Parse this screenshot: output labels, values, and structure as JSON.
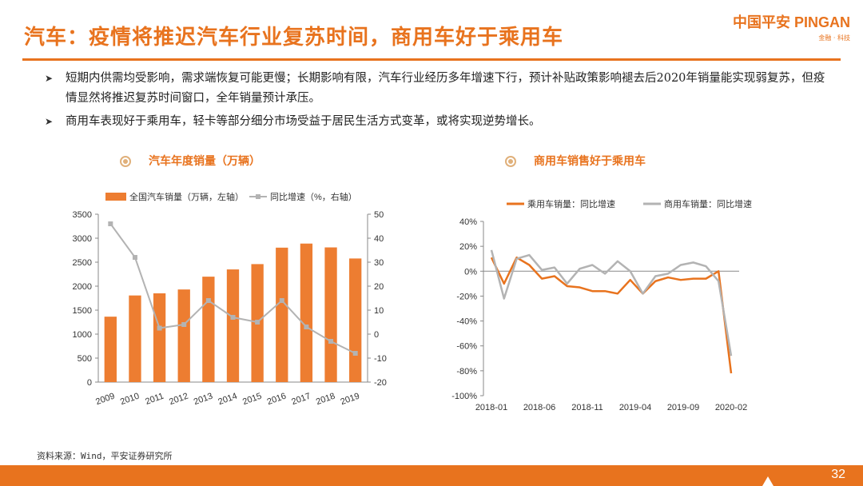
{
  "header": {
    "title": "汽车：疫情将推迟汽车行业复苏时间，商用车好于乘用车",
    "logo_brand": "中国平安 PINGAN",
    "logo_sub": "金融 · 科技"
  },
  "bullets": [
    "短期内供需均受影响，需求端恢复可能更慢；长期影响有限，汽车行业经历多年增速下行，预计补贴政策影响褪去后2020年销量能实现弱复苏，但疫情显然将推迟复苏时间窗口，全年销量预计承压。",
    "商用车表现好于乘用车，轻卡等部分细分市场受益于居民生活方式变革，或将实现逆势增长。"
  ],
  "left_section_title": "汽车年度销量（万辆）",
  "right_section_title": "商用车销售好于乘用车",
  "source": "资料来源：Wind，平安证券研究所",
  "page_number": "32",
  "colors": {
    "accent": "#e8731e",
    "gray": "#b3b3b3",
    "bar": "#ed7d31"
  },
  "chart_data": [
    {
      "type": "bar",
      "categories": [
        "2009",
        "2010",
        "2011",
        "2012",
        "2013",
        "2014",
        "2015",
        "2016",
        "2017",
        "2018",
        "2019"
      ],
      "series": [
        {
          "name": "全国汽车销量（万辆，左轴）",
          "kind": "bar",
          "axis": "left",
          "values": [
            1364,
            1806,
            1851,
            1931,
            2198,
            2349,
            2460,
            2803,
            2888,
            2808,
            2577
          ]
        },
        {
          "name": "同比增速（%，右轴）",
          "kind": "line",
          "axis": "right",
          "values": [
            46,
            32,
            2.5,
            4,
            14,
            7,
            5,
            14,
            3,
            -3,
            -8
          ]
        }
      ],
      "left_axis": {
        "ylim": [
          0,
          3500
        ],
        "ticks": [
          "0",
          "500",
          "1000",
          "1500",
          "2000",
          "2500",
          "3000",
          "3500"
        ]
      },
      "right_axis": {
        "ylim": [
          -20,
          50
        ],
        "ticks": [
          "-20",
          "-10",
          "0",
          "10",
          "20",
          "30",
          "40",
          "50"
        ]
      }
    },
    {
      "type": "line",
      "title": "商用车销售好于乘用车",
      "x_labels": [
        "2018-01",
        "2018-06",
        "2018-11",
        "2019-04",
        "2019-09",
        "2020-02"
      ],
      "ylim": [
        -100,
        40
      ],
      "y_ticks": [
        "-100%",
        "-80%",
        "-60%",
        "-40%",
        "-20%",
        "0%",
        "20%",
        "40%"
      ],
      "series": [
        {
          "name": "乘用车销量：同比增速",
          "values": [
            11,
            -10,
            11,
            5,
            -6,
            -4,
            -12,
            -13,
            -16,
            -16,
            -18,
            -7,
            -18,
            -8,
            -5,
            -7,
            -6,
            -6,
            0,
            -82
          ]
        },
        {
          "name": "商用车销量：同比增速",
          "values": [
            17,
            -22,
            10,
            13,
            1,
            3,
            -10,
            2,
            5,
            -2,
            8,
            0,
            -18,
            -4,
            -2,
            5,
            7,
            4,
            -8,
            -68
          ]
        }
      ]
    }
  ]
}
